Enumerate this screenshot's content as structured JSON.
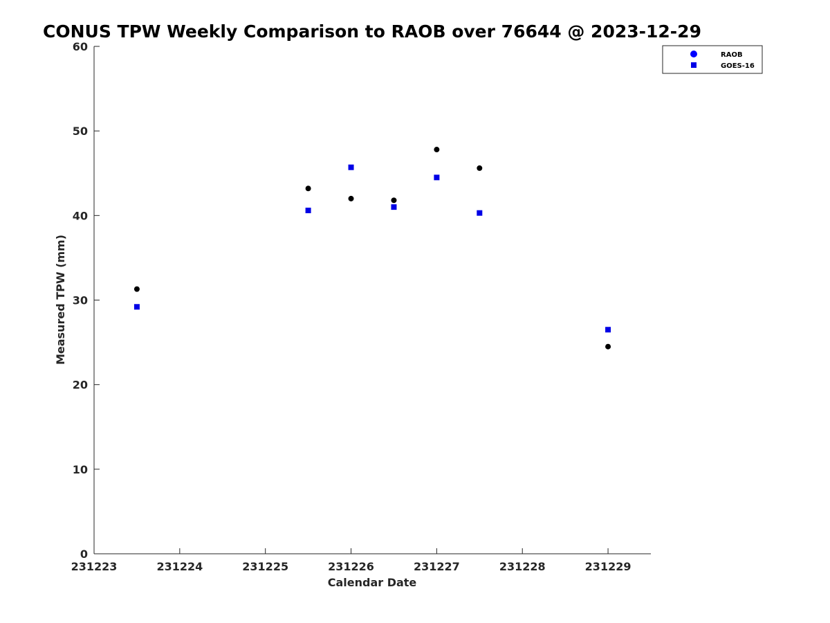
{
  "chart_data": {
    "type": "scatter",
    "title": "CONUS TPW Weekly Comparison to RAOB over 76644 @ 2023-12-29",
    "xlabel": "Calendar Date",
    "ylabel": "Measured TPW (mm)",
    "x_tick_labels": [
      "231223",
      "231224",
      "231225",
      "231226",
      "231227",
      "231228",
      "231229"
    ],
    "y_ticks": [
      0,
      10,
      20,
      30,
      40,
      50,
      60
    ],
    "xlim": [
      0,
      6.5
    ],
    "ylim": [
      0,
      60
    ],
    "legend_position": "top-right",
    "series": [
      {
        "name": "RAOB",
        "marker": "circle",
        "color": "#000000",
        "legend_color": "#0000ff",
        "points": [
          {
            "x": 0.5,
            "y": 31.3
          },
          {
            "x": 2.5,
            "y": 43.2
          },
          {
            "x": 3.0,
            "y": 42.0
          },
          {
            "x": 3.5,
            "y": 41.8
          },
          {
            "x": 4.0,
            "y": 47.8
          },
          {
            "x": 4.5,
            "y": 45.6
          },
          {
            "x": 6.0,
            "y": 24.5
          }
        ]
      },
      {
        "name": "GOES-16",
        "marker": "square",
        "color": "#0000e6",
        "legend_color": "#0000e6",
        "points": [
          {
            "x": 0.5,
            "y": 29.2
          },
          {
            "x": 2.5,
            "y": 40.6
          },
          {
            "x": 3.0,
            "y": 45.7
          },
          {
            "x": 3.5,
            "y": 41.0
          },
          {
            "x": 4.0,
            "y": 44.5
          },
          {
            "x": 4.5,
            "y": 40.3
          },
          {
            "x": 6.0,
            "y": 26.5
          }
        ]
      }
    ]
  }
}
